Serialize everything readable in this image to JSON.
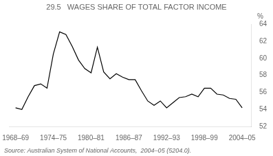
{
  "chart_data": {
    "type": "line",
    "title": "29.5   WAGES SHARE OF TOTAL FACTOR INCOME",
    "ylabel": "%",
    "source": "Source: Australian System of National Accounts,  2004–05 (5204.0).",
    "x": [
      1968,
      1969,
      1970,
      1971,
      1972,
      1973,
      1974,
      1975,
      1976,
      1977,
      1978,
      1979,
      1980,
      1981,
      1982,
      1983,
      1984,
      1985,
      1986,
      1987,
      1988,
      1989,
      1990,
      1991,
      1992,
      1993,
      1994,
      1995,
      1996,
      1997,
      1998,
      1999,
      2000,
      2001,
      2002,
      2003,
      2004
    ],
    "values": [
      54.2,
      54.0,
      55.5,
      56.8,
      57.0,
      56.5,
      60.5,
      63.1,
      62.8,
      61.4,
      59.8,
      58.8,
      58.3,
      61.3,
      58.4,
      57.6,
      58.2,
      57.8,
      57.5,
      57.5,
      56.2,
      55.0,
      54.5,
      55.0,
      54.2,
      54.8,
      55.4,
      55.5,
      55.8,
      55.5,
      56.5,
      56.5,
      55.8,
      55.7,
      55.3,
      55.2,
      54.2
    ],
    "color": "#000000",
    "xlim": [
      1967.0,
      2005.5
    ],
    "xticks": [
      {
        "value": 1968,
        "label": "1968–69"
      },
      {
        "value": 1974,
        "label": "1974–75"
      },
      {
        "value": 1980,
        "label": "1980–81"
      },
      {
        "value": 1986,
        "label": "1986–87"
      },
      {
        "value": 1992,
        "label": "1992–93"
      },
      {
        "value": 1998,
        "label": "1998–99"
      },
      {
        "value": 2004,
        "label": "2004–05"
      }
    ],
    "ylim": [
      52,
      64
    ],
    "yticks": [
      52,
      54,
      56,
      58,
      60,
      62,
      64
    ],
    "grid": false
  }
}
